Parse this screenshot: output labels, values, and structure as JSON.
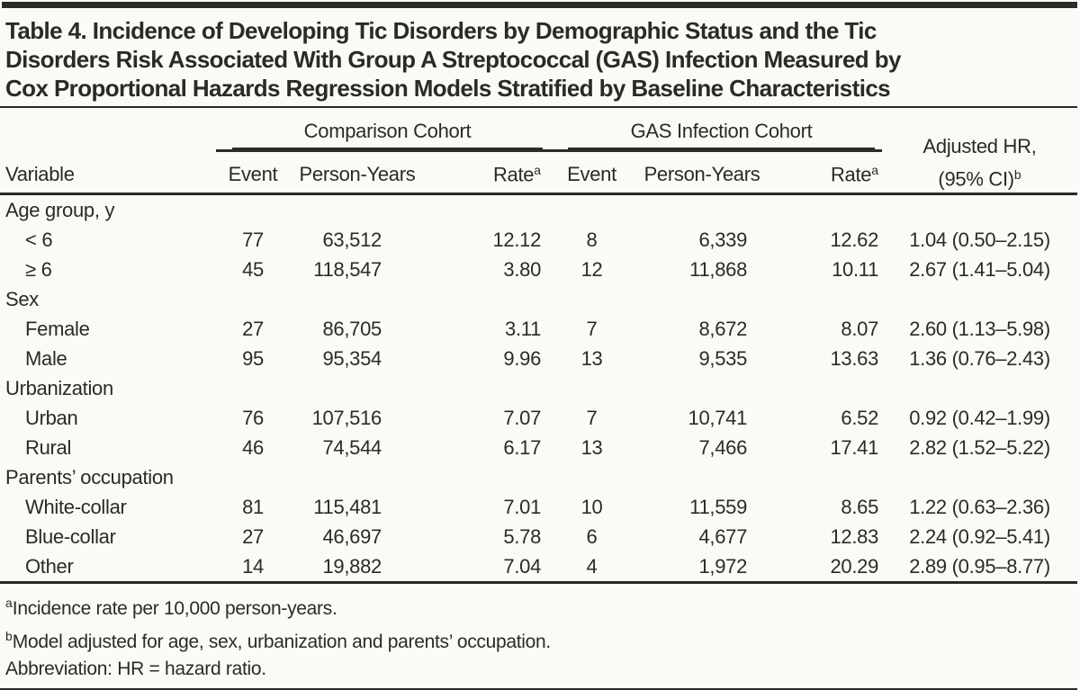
{
  "title_lines": [
    "Table 4. Incidence of Developing Tic Disorders by Demographic Status and the Tic",
    "Disorders Risk Associated With Group A Streptococcal (GAS) Infection Measured by",
    "Cox Proportional Hazards Regression Models Stratified by Baseline Characteristics"
  ],
  "table": {
    "variable_header": "Variable",
    "group_headers": {
      "comparison": "Comparison Cohort",
      "gas": "GAS Infection Cohort"
    },
    "sub_headers": {
      "event": "Event",
      "person_years": "Person-Years",
      "rate_base": "Rate",
      "rate_sup": "a"
    },
    "hr_header": {
      "line1": "Adjusted HR,",
      "line2_base": "(95% CI)",
      "line2_sup": "b"
    },
    "sections": [
      {
        "label": "Age group, y",
        "rows": [
          {
            "variable": "< 6",
            "values": [
              "77",
              "63,512",
              "12.12",
              "8",
              "6,339",
              "12.62",
              "1.04 (0.50–2.15)"
            ]
          },
          {
            "variable": "≥ 6",
            "values": [
              "45",
              "118,547",
              "3.80",
              "12",
              "11,868",
              "10.11",
              "2.67 (1.41–5.04)"
            ]
          }
        ]
      },
      {
        "label": "Sex",
        "rows": [
          {
            "variable": "Female",
            "values": [
              "27",
              "86,705",
              "3.11",
              "7",
              "8,672",
              "8.07",
              "2.60 (1.13–5.98)"
            ]
          },
          {
            "variable": "Male",
            "values": [
              "95",
              "95,354",
              "9.96",
              "13",
              "9,535",
              "13.63",
              "1.36 (0.76–2.43)"
            ]
          }
        ]
      },
      {
        "label": "Urbanization",
        "rows": [
          {
            "variable": "Urban",
            "values": [
              "76",
              "107,516",
              "7.07",
              "7",
              "10,741",
              "6.52",
              "0.92 (0.42–1.99)"
            ]
          },
          {
            "variable": "Rural",
            "values": [
              "46",
              "74,544",
              "6.17",
              "13",
              "7,466",
              "17.41",
              "2.82 (1.52–5.22)"
            ]
          }
        ]
      },
      {
        "label": "Parents’ occupation",
        "rows": [
          {
            "variable": "White-collar",
            "values": [
              "81",
              "115,481",
              "7.01",
              "10",
              "11,559",
              "8.65",
              "1.22 (0.63–2.36)"
            ]
          },
          {
            "variable": "Blue-collar",
            "values": [
              "27",
              "46,697",
              "5.78",
              "6",
              "4,677",
              "12.83",
              "2.24 (0.92–5.41)"
            ]
          },
          {
            "variable": "Other",
            "values": [
              "14",
              "19,882",
              "7.04",
              "4",
              "1,972",
              "20.29",
              "2.89 (0.95–8.77)"
            ]
          }
        ]
      }
    ]
  },
  "footnotes": [
    {
      "sup": "a",
      "text": "Incidence rate per 10,000 person-years."
    },
    {
      "sup": "b",
      "text": "Model adjusted for age, sex, urbanization and parents’ occupation."
    },
    {
      "sup": "",
      "text": "Abbreviation: HR = hazard ratio."
    }
  ],
  "colors": {
    "ink": "#2b2a28",
    "background": "#fafbf6"
  }
}
